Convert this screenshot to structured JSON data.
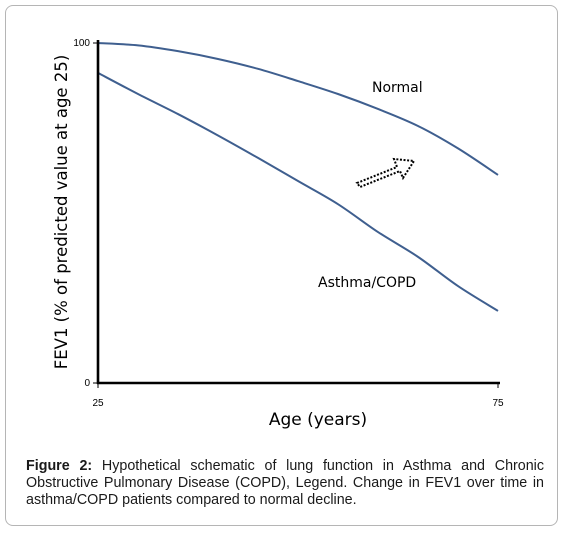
{
  "chart_data": {
    "type": "line",
    "xlabel": "Age (years)",
    "ylabel": "FEV1 (% of predicted value at age 25)",
    "x_ticks": [
      "25",
      "75"
    ],
    "y_ticks": [
      "0",
      "100"
    ],
    "xlim": [
      25,
      75
    ],
    "ylim": [
      0,
      100
    ],
    "series": [
      {
        "name": "Normal",
        "x": [
          25,
          30,
          35,
          40,
          45,
          50,
          55,
          60,
          65,
          70,
          75
        ],
        "y": [
          100,
          99.3,
          97.6,
          95.3,
          92.4,
          88.8,
          85.0,
          80.6,
          75.6,
          69.0,
          61.2
        ]
      },
      {
        "name": "Asthma/COPD",
        "x": [
          25,
          30,
          35,
          40,
          45,
          50,
          55,
          60,
          65,
          70,
          75
        ],
        "y": [
          91.2,
          85.0,
          79.1,
          72.8,
          66.2,
          59.4,
          52.6,
          44.4,
          37.1,
          28.5,
          21.2
        ]
      }
    ],
    "colors": {
      "line": "#3f5f8f",
      "axis": "#000000",
      "arrow": "#000000"
    }
  },
  "caption": {
    "label": "Figure 2:",
    "text": " Hypothetical schematic of lung function in Asthma and Chronic Obstructive Pulmonary Disease (COPD), Legend. Change in FEV1 over time in asthma/COPD patients compared to normal decline."
  }
}
